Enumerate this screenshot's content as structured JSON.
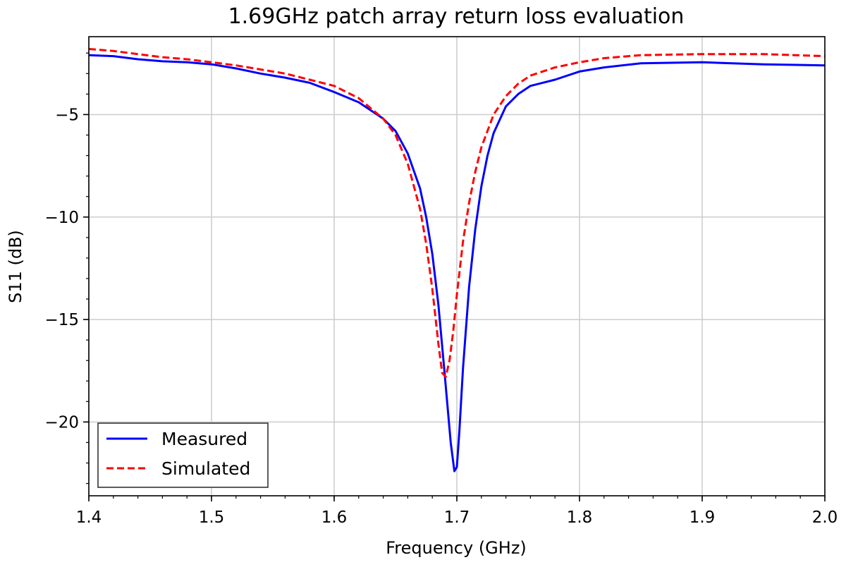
{
  "chart_data": {
    "type": "line",
    "title": "1.69GHz patch array return loss evaluation",
    "xlabel": "Frequency (GHz)",
    "ylabel": "S11 (dB)",
    "xlim": [
      1.4,
      2.0
    ],
    "ylim": [
      -23.6,
      -1.2
    ],
    "x_ticks": [
      1.4,
      1.5,
      1.6,
      1.7,
      1.8,
      1.9,
      2.0
    ],
    "x_tick_labels": [
      "1.4",
      "1.5",
      "1.6",
      "1.7",
      "1.8",
      "1.9",
      "2.0"
    ],
    "y_ticks": [
      -5,
      -10,
      -15,
      -20
    ],
    "y_tick_labels": [
      "−5",
      "−10",
      "−15",
      "−20"
    ],
    "grid": true,
    "legend_position": "lower-left",
    "series": [
      {
        "name": "Measured",
        "color": "#0000ff",
        "style": "solid",
        "x": [
          1.4,
          1.42,
          1.44,
          1.46,
          1.48,
          1.5,
          1.52,
          1.54,
          1.56,
          1.58,
          1.6,
          1.62,
          1.64,
          1.65,
          1.66,
          1.67,
          1.675,
          1.68,
          1.685,
          1.69,
          1.695,
          1.698,
          1.7,
          1.702,
          1.705,
          1.71,
          1.715,
          1.72,
          1.725,
          1.73,
          1.74,
          1.75,
          1.76,
          1.78,
          1.8,
          1.82,
          1.85,
          1.9,
          1.95,
          2.0
        ],
        "y": [
          -2.1,
          -2.15,
          -2.3,
          -2.4,
          -2.45,
          -2.55,
          -2.75,
          -3.0,
          -3.2,
          -3.45,
          -3.9,
          -4.4,
          -5.2,
          -5.8,
          -6.9,
          -8.6,
          -10.0,
          -11.8,
          -14.3,
          -17.6,
          -21.0,
          -22.4,
          -22.2,
          -20.5,
          -17.4,
          -13.4,
          -10.6,
          -8.5,
          -7.0,
          -5.9,
          -4.6,
          -4.0,
          -3.6,
          -3.3,
          -2.9,
          -2.7,
          -2.5,
          -2.45,
          -2.55,
          -2.6
        ]
      },
      {
        "name": "Simulated",
        "color": "#ff0000",
        "style": "dashed",
        "x": [
          1.4,
          1.42,
          1.44,
          1.46,
          1.48,
          1.5,
          1.52,
          1.54,
          1.56,
          1.58,
          1.6,
          1.62,
          1.64,
          1.65,
          1.66,
          1.67,
          1.675,
          1.68,
          1.685,
          1.688,
          1.691,
          1.694,
          1.697,
          1.7,
          1.705,
          1.71,
          1.715,
          1.72,
          1.73,
          1.74,
          1.75,
          1.76,
          1.78,
          1.8,
          1.82,
          1.85,
          1.9,
          1.95,
          2.0
        ],
        "y": [
          -1.8,
          -1.9,
          -2.05,
          -2.2,
          -2.3,
          -2.45,
          -2.6,
          -2.8,
          -3.0,
          -3.3,
          -3.6,
          -4.2,
          -5.2,
          -6.0,
          -7.4,
          -9.6,
          -11.3,
          -13.5,
          -16.2,
          -17.6,
          -17.8,
          -17.0,
          -15.6,
          -13.8,
          -11.2,
          -9.3,
          -7.8,
          -6.6,
          -5.0,
          -4.1,
          -3.5,
          -3.1,
          -2.7,
          -2.45,
          -2.25,
          -2.1,
          -2.05,
          -2.05,
          -2.15
        ]
      }
    ]
  }
}
